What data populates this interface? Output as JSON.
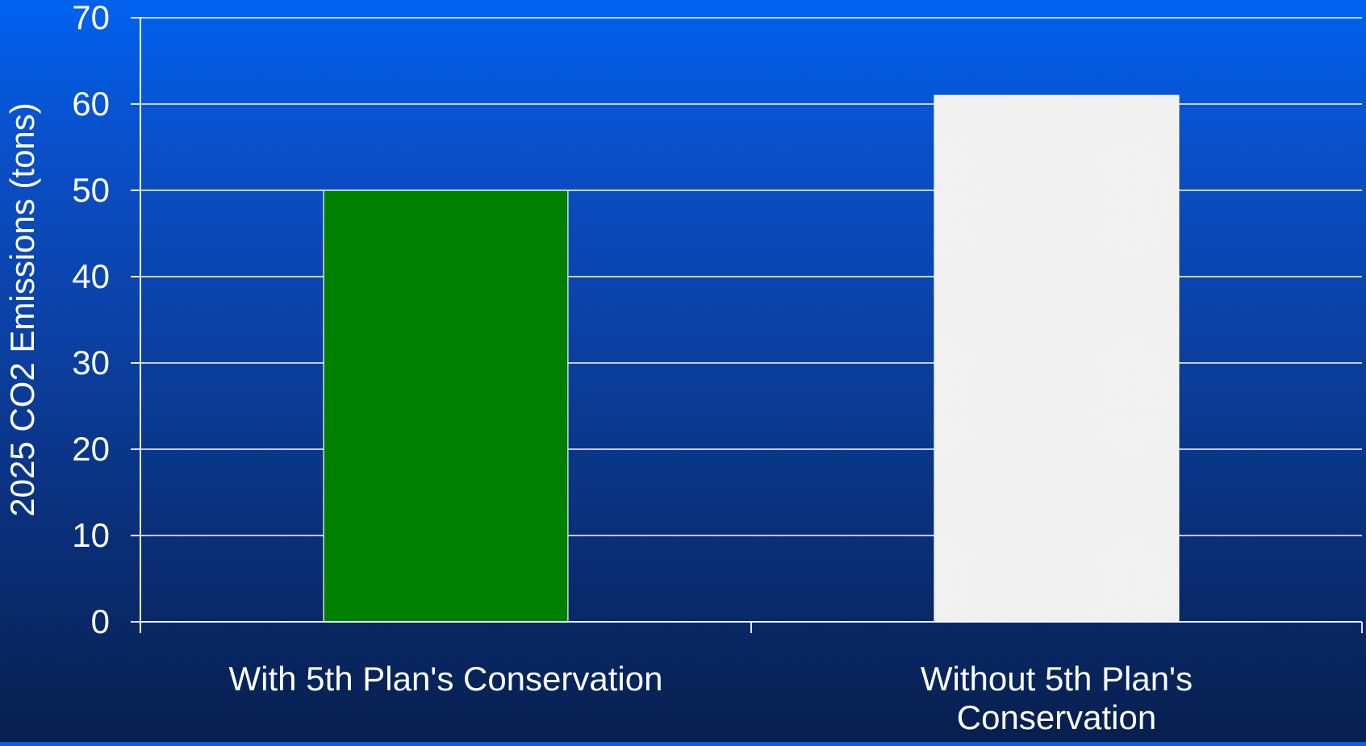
{
  "chart_data": {
    "type": "bar",
    "categories": [
      [
        "With 5th Plan's Conservation"
      ],
      [
        "Without 5th Plan's",
        "Conservation"
      ]
    ],
    "values": [
      50,
      61
    ],
    "ylabel": "2025 CO2 Emissions (tons)",
    "ylim": [
      0,
      70
    ],
    "yticks": [
      0,
      10,
      20,
      30,
      40,
      50,
      60,
      70
    ],
    "grid": true,
    "colors": {
      "bars": [
        "#008000",
        "#f0f0f0"
      ],
      "grid": "#ffffff",
      "text": "#ffffff"
    }
  }
}
